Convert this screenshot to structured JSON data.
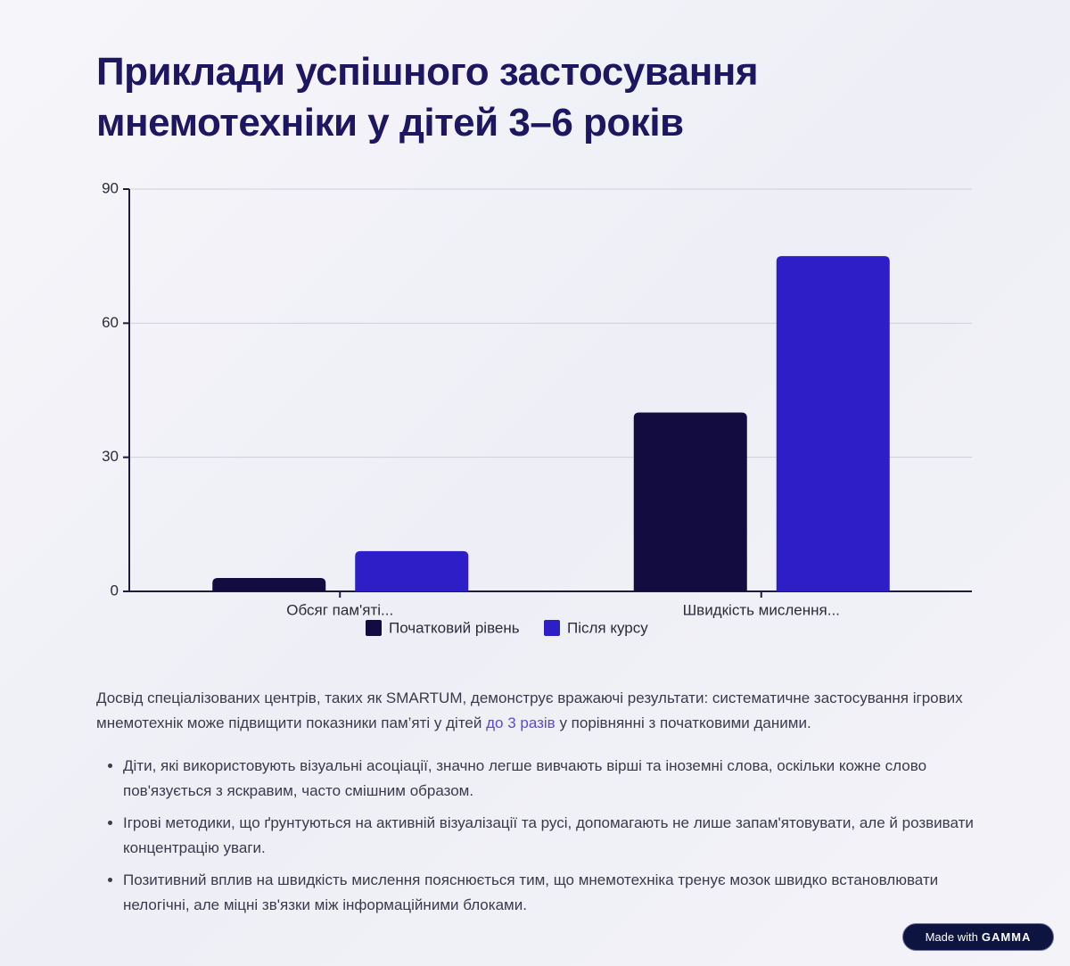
{
  "title": "Приклади успішного застосування мнемотехніки у дітей 3–6 років",
  "chart_data": {
    "type": "bar",
    "categories": [
      "Обсяг пам'яті...",
      "Швидкість мислення..."
    ],
    "series": [
      {
        "name": "Початковий рівень",
        "color": "#130c40",
        "values": [
          3,
          40
        ]
      },
      {
        "name": "Після курсу",
        "color": "#2e1ec8",
        "values": [
          9,
          75
        ]
      }
    ],
    "ylim": [
      0,
      90
    ],
    "yticks": [
      0,
      30,
      60,
      90
    ],
    "grid": true,
    "legend": "bottom"
  },
  "paragraph": {
    "before": "Досвід спеціалізованих центрів, таких як SMARTUM, демонструє вражаючі результати: систематичне застосування ігрових мнемотехнік може підвищити показники пам’яті у дітей ",
    "highlight": "до 3 разів",
    "after": " у порівнянні з початковими даними."
  },
  "bullets": [
    "Діти, які використовують візуальні асоціації, значно легше вивчають вірші та іноземні слова, оскільки кожне слово пов'язується з яскравим, часто смішним образом.",
    "Ігрові методики, що ґрунтуються на активній візуалізації та русі, допомагають не лише запам'ятовувати, але й розвивати концентрацію уваги.",
    "Позитивний вплив на швидкість мислення пояснюється тим, що мнемотехніка тренує мозок швидко встановлювати нелогічні, але міцні зв'язки між інформаційними блоками."
  ],
  "badge": {
    "prefix": "Made with",
    "brand": "GAMMA"
  }
}
